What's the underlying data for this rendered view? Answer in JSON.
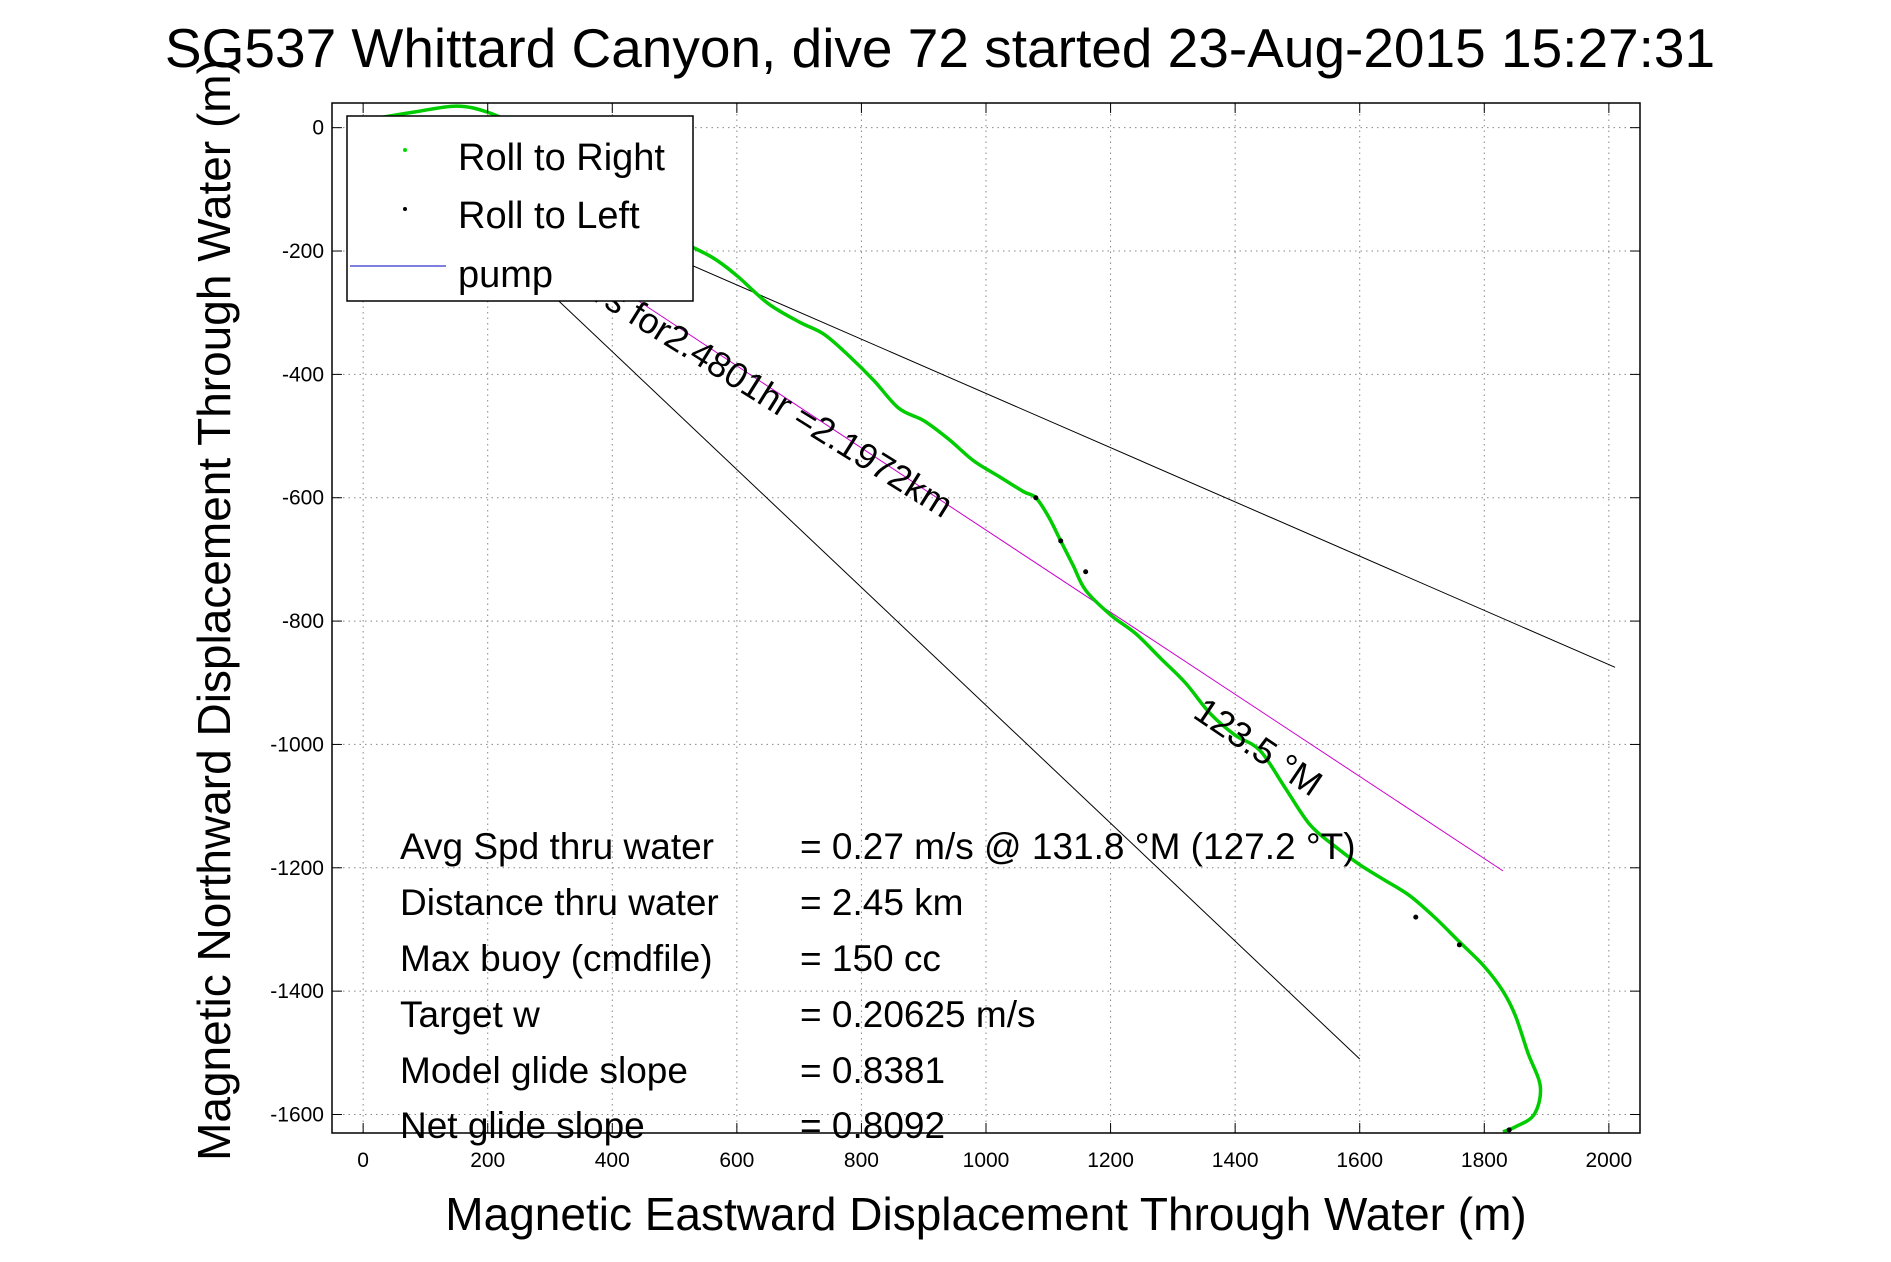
{
  "chart_data": {
    "type": "line",
    "title": "SG537 Whittard Canyon, dive 72 started 23-Aug-2015 15:27:31",
    "xlabel": "Magnetic Eastward Displacement Through Water (m)",
    "ylabel": "Magnetic Northward Displacement Through Water (m)",
    "xlim": [
      -50,
      2050
    ],
    "ylim": [
      -1630,
      40
    ],
    "x_ticks": [
      0,
      200,
      400,
      600,
      800,
      1000,
      1200,
      1400,
      1600,
      1800,
      2000
    ],
    "y_ticks": [
      0,
      -200,
      -400,
      -600,
      -800,
      -1000,
      -1200,
      -1400,
      -1600
    ],
    "grid": true,
    "legend": {
      "placement": "top-left",
      "entries": [
        {
          "label": "Roll to Right",
          "color": "#00dd00",
          "marker": "dot"
        },
        {
          "label": "Roll to Left",
          "color": "#000000",
          "marker": "dot"
        },
        {
          "label": "pump",
          "color": "#3333cc",
          "marker": "line"
        }
      ]
    },
    "series": [
      {
        "name": "Roll to Right",
        "color": "#00cc00",
        "x": [
          20,
          80,
          150,
          200,
          240,
          300,
          380,
          440,
          500,
          560,
          600,
          650,
          700,
          740,
          780,
          820,
          860,
          900,
          940,
          980,
          1020,
          1060,
          1080,
          1100,
          1120,
          1140,
          1160,
          1200,
          1240,
          1280,
          1320,
          1360,
          1400,
          1440,
          1480,
          1520,
          1560,
          1600,
          1640,
          1680,
          1720,
          1760,
          1800,
          1830,
          1850,
          1870,
          1890,
          1880,
          1850,
          1830
        ],
        "y": [
          15,
          25,
          35,
          25,
          5,
          -40,
          -110,
          -150,
          -180,
          -210,
          -240,
          -285,
          -315,
          -335,
          -370,
          -410,
          -455,
          -475,
          -505,
          -540,
          -565,
          -590,
          -600,
          -630,
          -670,
          -710,
          -750,
          -790,
          -820,
          -860,
          -900,
          -950,
          -985,
          -1010,
          -1070,
          -1130,
          -1165,
          -1195,
          -1220,
          -1245,
          -1280,
          -1320,
          -1360,
          -1400,
          -1440,
          -1500,
          -1555,
          -1600,
          -1620,
          -1628
        ]
      },
      {
        "name": "Roll to Left",
        "color": "#000000",
        "x": [
          1080,
          1120,
          1160,
          1690,
          1760,
          1840
        ],
        "y": [
          -600,
          -670,
          -720,
          -1280,
          -1325,
          -1625
        ]
      }
    ],
    "reference_lines": [
      {
        "name": "heading line",
        "color": "#cc00cc",
        "x": [
          20,
          1830
        ],
        "y": [
          0,
          -1205
        ]
      },
      {
        "name": "upper bound",
        "color": "#000000",
        "x": [
          20,
          2010
        ],
        "y": [
          0,
          -875
        ]
      },
      {
        "name": "lower bound",
        "color": "#000000",
        "x": [
          20,
          1600
        ],
        "y": [
          0,
          -1510
        ]
      }
    ],
    "annotations": [
      {
        "text": "m/s for2.4801hr =2.1972km",
        "x": 330,
        "y": -255,
        "angle_deg": 32
      },
      {
        "text": "123.5 °M",
        "x": 1330,
        "y": -955,
        "angle_deg": 34
      }
    ]
  },
  "stats": [
    {
      "label": "Avg Spd thru water",
      "value": "=  0.27 m/s @ 131.8 °M (127.2 °T)"
    },
    {
      "label": "Distance thru water",
      "value": "=  2.45 km"
    },
    {
      "label": "Max buoy (cmdfile)",
      "value": "= 150 cc"
    },
    {
      "label": "Target w",
      "value": "= 0.20625 m/s"
    },
    {
      "label": "Model glide slope",
      "value": "= 0.8381"
    },
    {
      "label": "Net glide slope",
      "value": "= 0.8092"
    }
  ]
}
